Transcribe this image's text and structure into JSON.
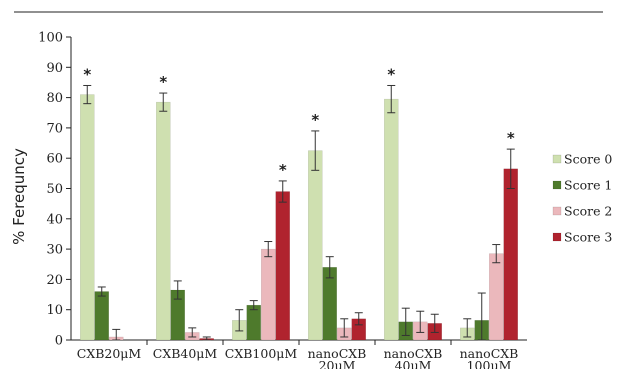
{
  "chart_data": {
    "type": "bar",
    "ylabel": "% Ferequncy",
    "ylim": [
      0,
      100
    ],
    "yticks": [
      "0",
      "10",
      "20",
      "30",
      "40",
      "50",
      "60",
      "70",
      "80",
      "90",
      "100"
    ],
    "ytick_values": [
      0,
      10,
      20,
      30,
      40,
      50,
      60,
      70,
      80,
      90,
      100
    ],
    "categories": [
      [
        "CXB20μM"
      ],
      [
        "CXB40μM"
      ],
      [
        "CXB100μM"
      ],
      [
        "nanoCXB",
        "20μM"
      ],
      [
        "nanoCXB",
        "40μM"
      ],
      [
        "nanoCXB",
        "100μM"
      ]
    ],
    "series": [
      {
        "name": "Score 0",
        "color": "#cfe0b0",
        "values": [
          81,
          78.5,
          6.5,
          62.5,
          79.5,
          4
        ],
        "errors": [
          3,
          3,
          3.5,
          6.5,
          4.5,
          3
        ]
      },
      {
        "name": "Score 1",
        "color": "#4e7a2c",
        "values": [
          16,
          16.5,
          11.5,
          24,
          6,
          6.5
        ],
        "errors": [
          1.5,
          3,
          1.5,
          3.5,
          4.5,
          9
        ]
      },
      {
        "name": "Score 2",
        "color": "#ebb8bc",
        "values": [
          1,
          2.5,
          30,
          4,
          6,
          28.5
        ],
        "errors": [
          2.5,
          1.5,
          2.5,
          3,
          3.5,
          3
        ]
      },
      {
        "name": "Score 3",
        "color": "#b0232e",
        "values": [
          0,
          0.5,
          49,
          7,
          5.5,
          56.5
        ],
        "errors": [
          0,
          0.5,
          3.5,
          2,
          3,
          6.5
        ]
      }
    ],
    "significance": [
      {
        "category": 0,
        "series": 0,
        "label": "*"
      },
      {
        "category": 1,
        "series": 0,
        "label": "*"
      },
      {
        "category": 2,
        "series": 3,
        "label": "*"
      },
      {
        "category": 3,
        "series": 0,
        "label": "*"
      },
      {
        "category": 4,
        "series": 0,
        "label": "*"
      },
      {
        "category": 5,
        "series": 3,
        "label": "*"
      }
    ],
    "legend_position": "right",
    "grid": false
  }
}
